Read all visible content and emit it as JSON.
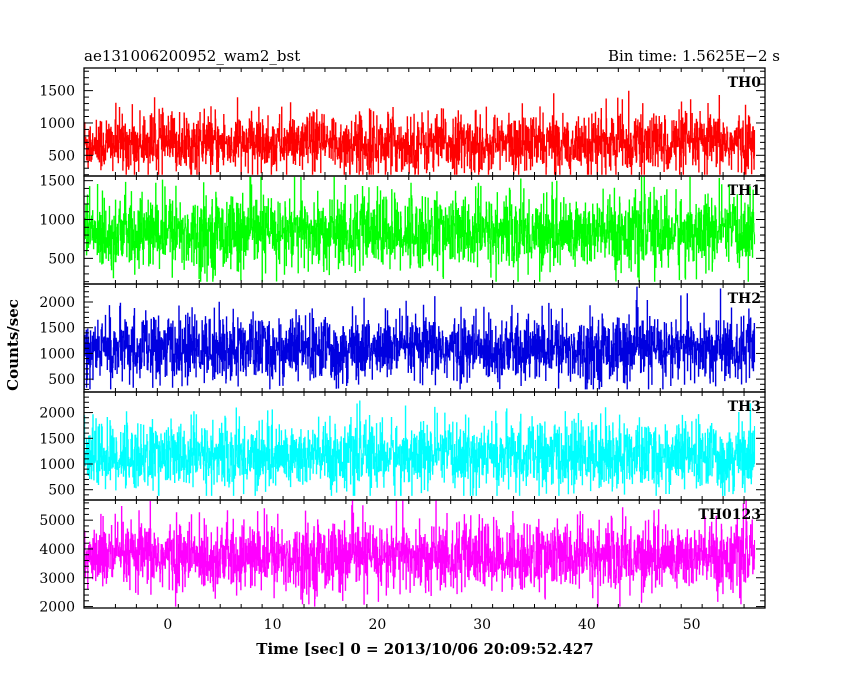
{
  "header": {
    "title": "ae131006200952_wam2_bst",
    "bin_time": "Bin time: 1.5625E−2 s"
  },
  "chart_data": {
    "type": "line",
    "title": "ae131006200952_wam2_bst",
    "xlabel": "Time [sec] 0 = 2013/10/06 20:09:52.427",
    "ylabel": "Counts/sec",
    "xlim": [
      -8,
      57
    ],
    "data_x_range": [
      -8,
      56
    ],
    "x_ticks": [
      0,
      10,
      20,
      30,
      40,
      50
    ],
    "x_tick_labels": [
      "0",
      "10",
      "20",
      "30",
      "40",
      "50"
    ],
    "grid": false,
    "legend": "none",
    "panels": [
      {
        "name": "TH0",
        "color": "#ff0000",
        "ylim": [
          180,
          1850
        ],
        "y_ticks": [
          500,
          1000,
          1500
        ],
        "y_tick_labels": [
          "500",
          "1000",
          "1500"
        ],
        "mean": 680,
        "sigma": 240,
        "clip": [
          200,
          1800
        ]
      },
      {
        "name": "TH1",
        "color": "#00ff00",
        "ylim": [
          170,
          1560
        ],
        "y_ticks": [
          500,
          1000,
          1500
        ],
        "y_tick_labels": [
          "500",
          "1000",
          "1500"
        ],
        "mean": 830,
        "sigma": 250,
        "clip": [
          200,
          1550
        ]
      },
      {
        "name": "TH2",
        "color": "#0000e0",
        "ylim": [
          250,
          2350
        ],
        "y_ticks": [
          500,
          1000,
          1500,
          2000
        ],
        "y_tick_labels": [
          "500",
          "1000",
          "1500",
          "2000"
        ],
        "mean": 1080,
        "sigma": 330,
        "clip": [
          300,
          2300
        ]
      },
      {
        "name": "TH3",
        "color": "#00ffff",
        "ylim": [
          300,
          2400
        ],
        "y_ticks": [
          500,
          1000,
          1500,
          2000
        ],
        "y_tick_labels": [
          "500",
          "1000",
          "1500",
          "2000"
        ],
        "mean": 1150,
        "sigma": 340,
        "clip": [
          380,
          2400
        ]
      },
      {
        "name": "TH0123",
        "color": "#ff00ff",
        "ylim": [
          1950,
          5700
        ],
        "y_ticks": [
          2000,
          3000,
          4000,
          5000
        ],
        "y_tick_labels": [
          "2000",
          "3000",
          "4000",
          "5000"
        ],
        "mean": 3720,
        "sigma": 620,
        "clip": [
          2000,
          5700
        ]
      }
    ]
  }
}
